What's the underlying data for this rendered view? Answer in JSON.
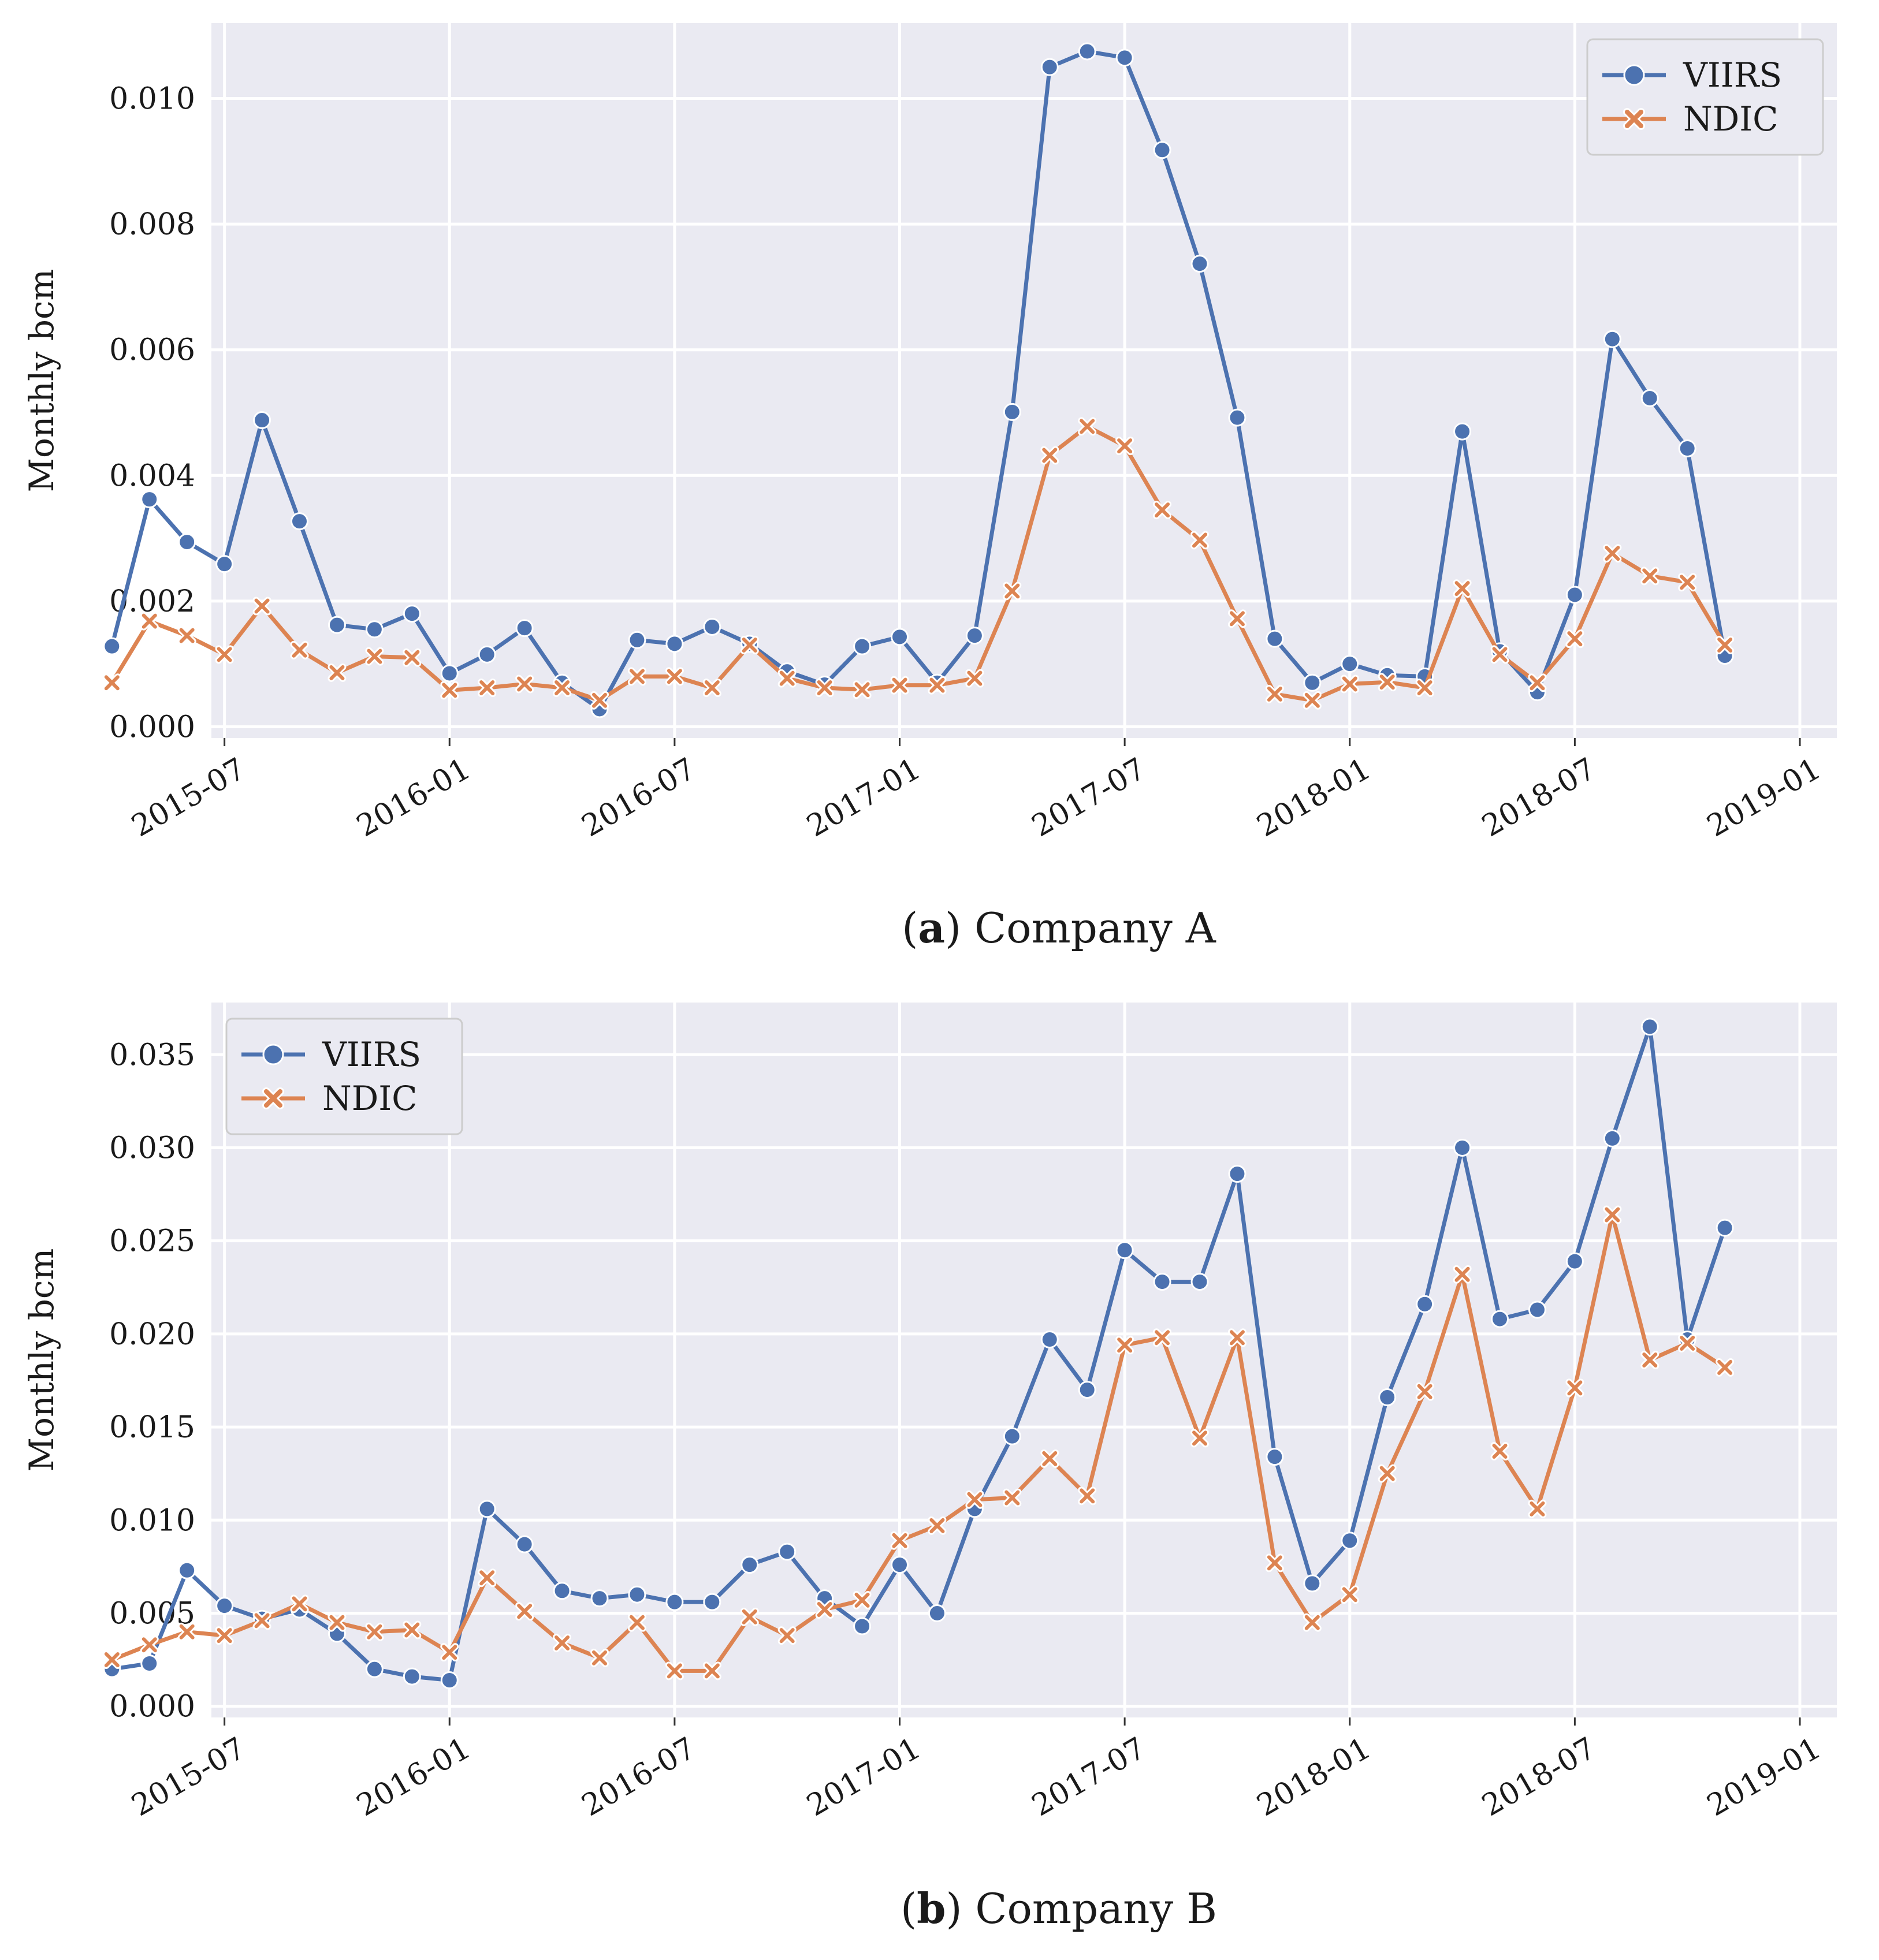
{
  "figure": {
    "panels": [
      {
        "id": "a",
        "caption": {
          "label": "a",
          "open": "(",
          "close": ")",
          "text": "Company A"
        },
        "legend_position": "top-right",
        "chart_data": {
          "type": "line",
          "title": "",
          "xlabel": "",
          "ylabel": "Monthly bcm",
          "ylim": [
            -0.00018,
            0.0112
          ],
          "yticks": [
            0.0,
            0.002,
            0.004,
            0.006,
            0.008,
            0.01
          ],
          "ytick_labels": [
            "0.000",
            "0.002",
            "0.004",
            "0.006",
            "0.008",
            "0.010"
          ],
          "xticks": [
            "2015-07",
            "2016-01",
            "2016-07",
            "2017-01",
            "2017-07",
            "2018-01",
            "2018-07",
            "2019-01"
          ],
          "x_start": "2015-04",
          "x_end": "2018-12",
          "series": [
            {
              "name": "VIIRS",
              "color": "#4c72b0",
              "marker": "circle",
              "values": [
                0.00128,
                0.00362,
                0.00294,
                0.00259,
                0.00488,
                0.00327,
                0.00162,
                0.00155,
                0.0018,
                0.00085,
                0.00115,
                0.00157,
                0.0007,
                0.00028,
                0.00138,
                0.00132,
                0.00159,
                0.00132,
                0.00088,
                0.00067,
                0.00128,
                0.00143,
                0.0007,
                0.00145,
                0.00501,
                0.0105,
                0.01075,
                0.01065,
                0.00918,
                0.00737,
                0.00492,
                0.0014,
                0.0007,
                0.001,
                0.00082,
                0.0008,
                0.0047,
                0.0012,
                0.00055,
                0.0021,
                0.00617,
                0.00523,
                0.00443,
                0.00113
              ]
            },
            {
              "name": "NDIC",
              "color": "#dd8452",
              "marker": "x",
              "values": [
                0.0007,
                0.00168,
                0.00145,
                0.00115,
                0.00192,
                0.00122,
                0.00086,
                0.00112,
                0.0011,
                0.00058,
                0.00062,
                0.00068,
                0.00062,
                0.00042,
                0.0008,
                0.0008,
                0.00062,
                0.0013,
                0.00077,
                0.00062,
                0.00059,
                0.00066,
                0.00066,
                0.00077,
                0.00216,
                0.00432,
                0.00478,
                0.00447,
                0.00345,
                0.00297,
                0.00172,
                0.00052,
                0.00042,
                0.00068,
                0.00071,
                0.00062,
                0.0022,
                0.00115,
                0.0007,
                0.0014,
                0.00276,
                0.0024,
                0.0023,
                0.0013
              ]
            }
          ]
        }
      },
      {
        "id": "b",
        "caption": {
          "label": "b",
          "open": "(",
          "close": ")",
          "text": "Company B"
        },
        "legend_position": "top-left",
        "chart_data": {
          "type": "line",
          "title": "",
          "xlabel": "",
          "ylabel": "Monthly bcm",
          "ylim": [
            -0.0006,
            0.0378
          ],
          "yticks": [
            0.0,
            0.005,
            0.01,
            0.015,
            0.02,
            0.025,
            0.03,
            0.035
          ],
          "ytick_labels": [
            "0.000",
            "0.005",
            "0.010",
            "0.015",
            "0.020",
            "0.025",
            "0.030",
            "0.035"
          ],
          "xticks": [
            "2015-07",
            "2016-01",
            "2016-07",
            "2017-01",
            "2017-07",
            "2018-01",
            "2018-07",
            "2019-01"
          ],
          "x_start": "2015-04",
          "x_end": "2018-12",
          "series": [
            {
              "name": "VIIRS",
              "color": "#4c72b0",
              "marker": "circle",
              "values": [
                0.002,
                0.0023,
                0.0073,
                0.0054,
                0.0047,
                0.0052,
                0.0039,
                0.002,
                0.0016,
                0.0014,
                0.0106,
                0.0087,
                0.0062,
                0.0058,
                0.006,
                0.0056,
                0.0056,
                0.0076,
                0.0083,
                0.0058,
                0.0043,
                0.0076,
                0.005,
                0.0106,
                0.0145,
                0.0197,
                0.017,
                0.0245,
                0.0228,
                0.0228,
                0.0286,
                0.0134,
                0.0066,
                0.0089,
                0.0166,
                0.0216,
                0.03,
                0.0208,
                0.0213,
                0.0239,
                0.0305,
                0.0365,
                0.0197,
                0.0257
              ]
            },
            {
              "name": "NDIC",
              "color": "#dd8452",
              "marker": "x",
              "values": [
                0.0025,
                0.0033,
                0.004,
                0.0038,
                0.0046,
                0.0055,
                0.0045,
                0.004,
                0.0041,
                0.0029,
                0.0069,
                0.0051,
                0.0034,
                0.0026,
                0.0045,
                0.0019,
                0.0019,
                0.0048,
                0.0038,
                0.0052,
                0.0057,
                0.0089,
                0.0097,
                0.0111,
                0.0112,
                0.0133,
                0.0113,
                0.0194,
                0.0198,
                0.0144,
                0.0198,
                0.0077,
                0.0045,
                0.006,
                0.0125,
                0.0169,
                0.0232,
                0.0137,
                0.0106,
                0.0171,
                0.0264,
                0.0186,
                0.0195,
                0.0182
              ]
            }
          ]
        }
      }
    ]
  }
}
